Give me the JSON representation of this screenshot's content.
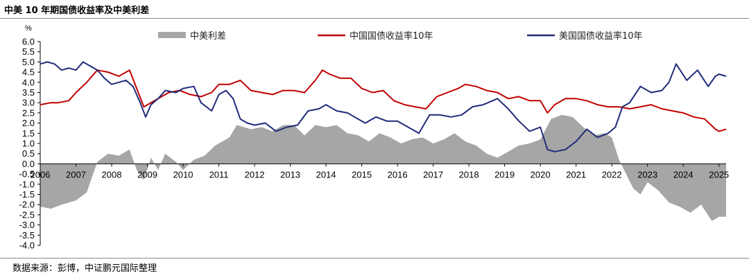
{
  "title": "中美 10 年期国债收益率及中美利差",
  "source": "数据来源：彭博，中证鹏元国际整理",
  "chart_data": {
    "type": "line",
    "yunit": "%",
    "ylim": [
      -4.0,
      6.0
    ],
    "yticks": [
      "6.0",
      "5.5",
      "5.0",
      "4.5",
      "4.0",
      "3.5",
      "3.0",
      "2.5",
      "2.0",
      "1.5",
      "1.0",
      "0.5",
      "0.0",
      "-0.5",
      "-1.0",
      "-1.5",
      "-2.0",
      "-2.5",
      "-3.0",
      "-3.5",
      "-4.0"
    ],
    "xlim": [
      2006.0,
      2025.2
    ],
    "xticks": [
      "2006",
      "2007",
      "2008",
      "2009",
      "2010",
      "2011",
      "2012",
      "2013",
      "2014",
      "2015",
      "2016",
      "2017",
      "2018",
      "2019",
      "2020",
      "2021",
      "2022",
      "2023",
      "2024",
      "2025"
    ],
    "grid": false,
    "legend_position": "top",
    "series": [
      {
        "name": "中美利差",
        "kind": "area",
        "color": "#a6a6a6",
        "x": [
          2006.0,
          2006.3,
          2006.6,
          2007.0,
          2007.3,
          2007.6,
          2007.9,
          2008.2,
          2008.5,
          2008.7,
          2008.9,
          2009.1,
          2009.3,
          2009.5,
          2009.8,
          2010.0,
          2010.3,
          2010.6,
          2010.9,
          2011.1,
          2011.3,
          2011.5,
          2011.7,
          2011.9,
          2012.2,
          2012.5,
          2012.8,
          2013.1,
          2013.4,
          2013.7,
          2014.0,
          2014.3,
          2014.6,
          2014.9,
          2015.2,
          2015.5,
          2015.8,
          2016.1,
          2016.4,
          2016.7,
          2017.0,
          2017.3,
          2017.6,
          2017.9,
          2018.2,
          2018.5,
          2018.8,
          2019.1,
          2019.4,
          2019.7,
          2020.0,
          2020.3,
          2020.6,
          2020.9,
          2021.2,
          2021.5,
          2021.8,
          2022.0,
          2022.2,
          2022.4,
          2022.6,
          2022.8,
          2023.0,
          2023.3,
          2023.6,
          2023.9,
          2024.2,
          2024.5,
          2024.8,
          2025.0,
          2025.2
        ],
        "values": [
          -2.1,
          -2.2,
          -2.0,
          -1.8,
          -1.4,
          0.1,
          0.5,
          0.4,
          0.7,
          -0.3,
          -0.8,
          0.3,
          -0.3,
          0.5,
          0.1,
          -0.3,
          0.2,
          0.4,
          0.9,
          1.1,
          1.3,
          1.9,
          1.8,
          1.7,
          1.8,
          1.6,
          1.9,
          1.9,
          1.4,
          1.9,
          1.8,
          1.9,
          1.5,
          1.4,
          1.1,
          1.5,
          1.3,
          1.0,
          1.2,
          1.3,
          1.0,
          1.2,
          1.5,
          1.1,
          0.9,
          0.5,
          0.3,
          0.6,
          0.9,
          1.0,
          1.2,
          2.2,
          2.4,
          2.3,
          1.8,
          1.4,
          1.5,
          1.3,
          0.2,
          -0.5,
          -1.2,
          -1.5,
          -0.9,
          -1.3,
          -1.9,
          -2.1,
          -2.4,
          -2.0,
          -2.8,
          -2.6,
          -2.6
        ]
      },
      {
        "name": "中国国债收益率10年",
        "kind": "line",
        "color": "#c00000",
        "x": [
          2006.0,
          2006.3,
          2006.5,
          2006.8,
          2007.0,
          2007.3,
          2007.6,
          2007.9,
          2008.2,
          2008.5,
          2008.7,
          2008.9,
          2009.1,
          2009.3,
          2009.6,
          2009.9,
          2010.2,
          2010.5,
          2010.8,
          2011.0,
          2011.3,
          2011.6,
          2011.9,
          2012.2,
          2012.5,
          2012.8,
          2013.1,
          2013.4,
          2013.7,
          2013.9,
          2014.1,
          2014.4,
          2014.7,
          2015.0,
          2015.3,
          2015.6,
          2015.9,
          2016.2,
          2016.5,
          2016.8,
          2017.1,
          2017.4,
          2017.7,
          2017.9,
          2018.2,
          2018.5,
          2018.8,
          2019.1,
          2019.4,
          2019.7,
          2020.0,
          2020.2,
          2020.4,
          2020.7,
          2021.0,
          2021.3,
          2021.6,
          2021.9,
          2022.2,
          2022.5,
          2022.8,
          2023.1,
          2023.4,
          2023.7,
          2024.0,
          2024.3,
          2024.6,
          2024.9,
          2025.0,
          2025.2
        ],
        "values": [
          2.9,
          3.0,
          3.0,
          3.1,
          3.5,
          4.0,
          4.6,
          4.5,
          4.3,
          4.6,
          3.7,
          2.8,
          3.0,
          3.2,
          3.5,
          3.6,
          3.4,
          3.3,
          3.5,
          3.9,
          3.9,
          4.1,
          3.6,
          3.5,
          3.4,
          3.6,
          3.6,
          3.5,
          4.1,
          4.6,
          4.4,
          4.2,
          4.2,
          3.7,
          3.5,
          3.6,
          3.1,
          2.9,
          2.8,
          2.7,
          3.3,
          3.5,
          3.7,
          3.9,
          3.8,
          3.6,
          3.5,
          3.2,
          3.3,
          3.1,
          3.1,
          2.5,
          2.9,
          3.2,
          3.2,
          3.1,
          2.9,
          2.8,
          2.8,
          2.7,
          2.8,
          2.9,
          2.7,
          2.6,
          2.5,
          2.3,
          2.2,
          1.7,
          1.6,
          1.7
        ]
      },
      {
        "name": "美国国债收益率10年",
        "kind": "line",
        "color": "#1f2a7a",
        "x": [
          2006.0,
          2006.2,
          2006.4,
          2006.6,
          2006.8,
          2007.0,
          2007.2,
          2007.4,
          2007.6,
          2007.8,
          2008.0,
          2008.2,
          2008.4,
          2008.6,
          2008.8,
          2008.95,
          2009.1,
          2009.3,
          2009.5,
          2009.8,
          2010.0,
          2010.3,
          2010.5,
          2010.8,
          2011.0,
          2011.2,
          2011.4,
          2011.6,
          2011.8,
          2012.0,
          2012.3,
          2012.6,
          2012.9,
          2013.2,
          2013.5,
          2013.8,
          2014.0,
          2014.3,
          2014.6,
          2014.9,
          2015.1,
          2015.4,
          2015.7,
          2016.0,
          2016.3,
          2016.6,
          2016.9,
          2017.2,
          2017.5,
          2017.8,
          2018.1,
          2018.4,
          2018.8,
          2019.1,
          2019.4,
          2019.7,
          2020.0,
          2020.2,
          2020.4,
          2020.7,
          2021.0,
          2021.3,
          2021.6,
          2021.9,
          2022.1,
          2022.3,
          2022.5,
          2022.8,
          2023.1,
          2023.4,
          2023.6,
          2023.8,
          2024.1,
          2024.4,
          2024.7,
          2024.9,
          2025.0,
          2025.2
        ],
        "values": [
          4.9,
          5.0,
          4.9,
          4.6,
          4.7,
          4.6,
          5.0,
          4.8,
          4.6,
          4.2,
          3.9,
          4.0,
          4.1,
          3.8,
          3.0,
          2.3,
          2.9,
          3.2,
          3.6,
          3.5,
          3.7,
          3.8,
          3.0,
          2.6,
          3.4,
          3.6,
          3.2,
          2.2,
          2.0,
          1.9,
          2.0,
          1.6,
          1.8,
          1.9,
          2.6,
          2.7,
          2.9,
          2.6,
          2.5,
          2.2,
          2.0,
          2.3,
          2.1,
          2.1,
          1.8,
          1.5,
          2.4,
          2.4,
          2.3,
          2.4,
          2.8,
          2.9,
          3.2,
          2.7,
          2.1,
          1.6,
          1.8,
          0.7,
          0.6,
          0.7,
          1.1,
          1.7,
          1.3,
          1.5,
          1.8,
          2.8,
          3.0,
          3.8,
          3.5,
          3.6,
          4.0,
          4.9,
          4.1,
          4.6,
          3.8,
          4.3,
          4.4,
          4.3
        ]
      }
    ]
  }
}
